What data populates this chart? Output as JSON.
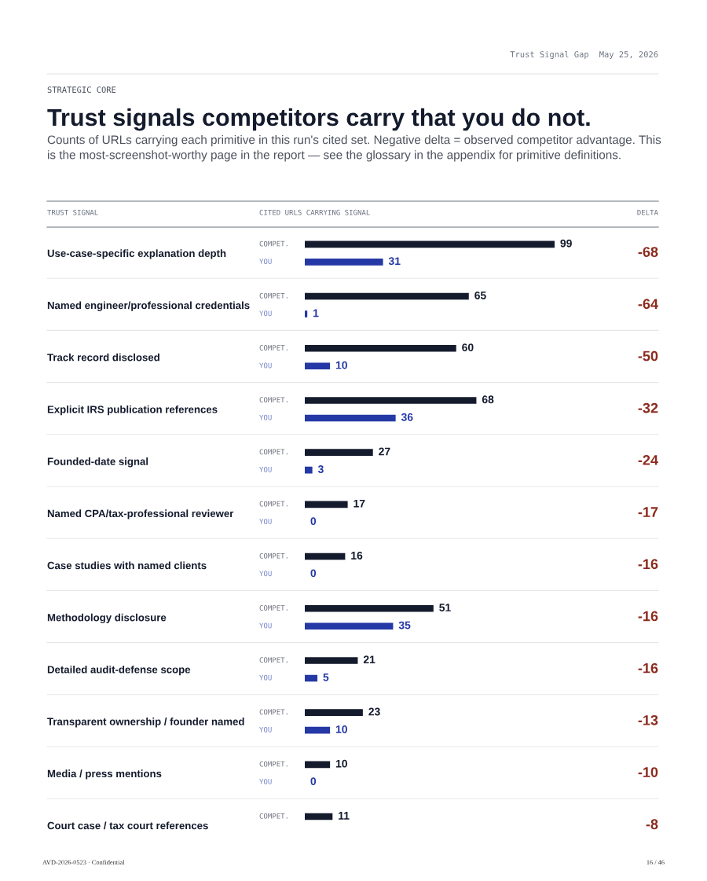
{
  "chart_data": {
    "type": "bar",
    "orientation": "horizontal",
    "title": "Trust signals competitors carry that you do not.",
    "subtitle": "Counts of URLs carrying each primitive in this run's cited set. Negative delta = observed competitor advantage. This is the most-screenshot-worthy page in the report — see the glossary in the appendix for primitive definitions.",
    "categories": [
      "Use-case-specific explanation depth",
      "Named engineer/professional credentials",
      "Track record disclosed",
      "Explicit IRS publication references",
      "Founded-date signal",
      "Named CPA/tax-professional reviewer",
      "Case studies with named clients",
      "Methodology disclosure",
      "Detailed audit-defense scope",
      "Transparent ownership / founder named",
      "Media / press mentions",
      "Court case / tax court references"
    ],
    "series": [
      {
        "name": "COMPET.",
        "color": "#141b2d",
        "values": [
          99,
          65,
          60,
          68,
          27,
          17,
          16,
          51,
          21,
          23,
          10,
          11
        ]
      },
      {
        "name": "YOU",
        "color": "#2438a6",
        "values": [
          31,
          1,
          10,
          36,
          3,
          0,
          0,
          35,
          5,
          10,
          0,
          null
        ]
      }
    ],
    "xlim": [
      0,
      99
    ],
    "data_labels": true,
    "tick_labels": "y",
    "grid": false,
    "legend": false,
    "annotations": [
      "Trust Signal Gap",
      "May 25, 2026",
      "STRATEGIC CORE",
      "TRUST SIGNAL",
      "CITED URLS CARRYING SIGNAL",
      "DELTA",
      "-68",
      "-64",
      "-50",
      "-32",
      "-24",
      "-17",
      "-16",
      "-16",
      "-16",
      "-13",
      "-10",
      "-8",
      "AVD-2026-0523 · Confidential",
      "16 / 46"
    ]
  }
}
